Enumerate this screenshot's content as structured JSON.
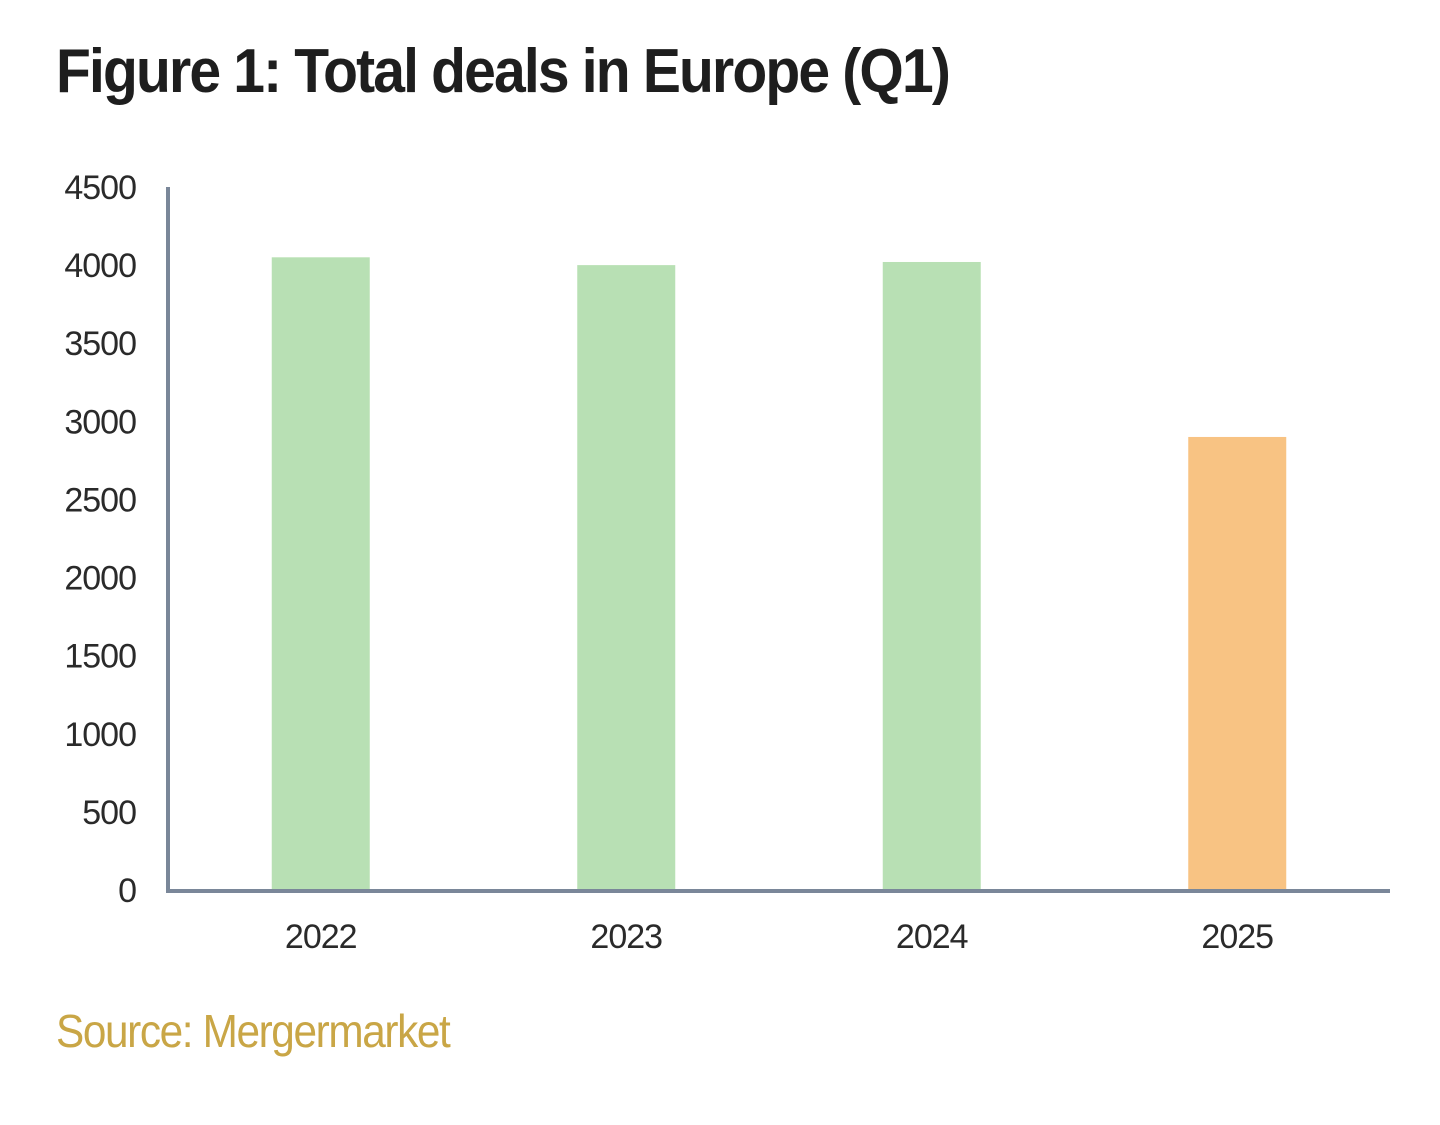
{
  "chart_data": {
    "type": "bar",
    "title": "Figure 1: Total deals in Europe (Q1)",
    "categories": [
      "2022",
      "2023",
      "2024",
      "2025"
    ],
    "values": [
      4050,
      4000,
      4020,
      2900
    ],
    "bar_colors": [
      "#b8e0b4",
      "#b8e0b4",
      "#b8e0b4",
      "#f8c383"
    ],
    "xlabel": "",
    "ylabel": "",
    "ylim": [
      0,
      4500
    ],
    "yticks": [
      0,
      500,
      1000,
      1500,
      2000,
      2500,
      3000,
      3500,
      4000,
      4500
    ],
    "ytick_labels": [
      "0",
      "500",
      "1000",
      "1500",
      "2000",
      "2500",
      "3000",
      "3500",
      "4000",
      "4500"
    ],
    "grid": false,
    "legend": null,
    "source": "Source: Mergermarket",
    "axis_color": "#7a8799"
  }
}
